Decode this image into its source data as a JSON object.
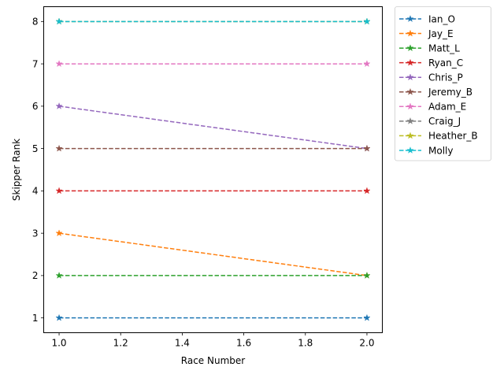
{
  "chart_data": {
    "type": "line",
    "title": "",
    "xlabel": "Race Number",
    "ylabel": "Skipper Rank",
    "xlim": [
      0.95,
      2.05
    ],
    "ylim": [
      0.65,
      8.35
    ],
    "xticks": [
      1.0,
      1.2,
      1.4,
      1.6,
      1.8,
      2.0
    ],
    "xtick_labels": [
      "1.0",
      "1.2",
      "1.4",
      "1.6",
      "1.8",
      "2.0"
    ],
    "yticks": [
      1,
      2,
      3,
      4,
      5,
      6,
      7,
      8
    ],
    "ytick_labels": [
      "1",
      "2",
      "3",
      "4",
      "5",
      "6",
      "7",
      "8"
    ],
    "grid": false,
    "legend_position": "outside-top-right",
    "line_style": "dashed",
    "marker": "star",
    "x": [
      1.0,
      2.0
    ],
    "series": [
      {
        "name": "Ian_O",
        "values": [
          1,
          1
        ],
        "color": "#1f77b4"
      },
      {
        "name": "Jay_E",
        "values": [
          3,
          2
        ],
        "color": "#ff7f0e"
      },
      {
        "name": "Matt_L",
        "values": [
          2,
          2
        ],
        "color": "#2ca02c"
      },
      {
        "name": "Ryan_C",
        "values": [
          4,
          4
        ],
        "color": "#d62728"
      },
      {
        "name": "Chris_P",
        "values": [
          6,
          5
        ],
        "color": "#9467bd"
      },
      {
        "name": "Jeremy_B",
        "values": [
          5,
          5
        ],
        "color": "#8c564b"
      },
      {
        "name": "Adam_E",
        "values": [
          7,
          7
        ],
        "color": "#e377c2"
      },
      {
        "name": "Craig_J",
        "values": [
          8,
          8
        ],
        "color": "#7f7f7f"
      },
      {
        "name": "Heather_B",
        "values": [
          8,
          8
        ],
        "color": "#bcbd22"
      },
      {
        "name": "Molly",
        "values": [
          8,
          8
        ],
        "color": "#17becf"
      }
    ]
  }
}
